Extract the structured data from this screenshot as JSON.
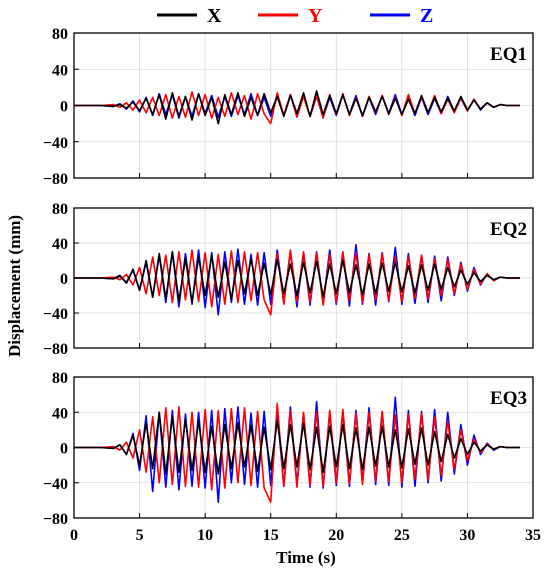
{
  "legend": [
    {
      "label": "X",
      "color": "#000000"
    },
    {
      "label": "Y",
      "color": "#ff0000"
    },
    {
      "label": "Z",
      "color": "#0000ff"
    }
  ],
  "ylabel": "Displacement (mm)",
  "xlabel": "Time (s)",
  "chart_data": [
    {
      "type": "line",
      "title": "EQ1",
      "xlim": [
        0,
        35
      ],
      "ylim": [
        -80,
        80
      ],
      "xticks": [
        0,
        5,
        10,
        15,
        20,
        25,
        30,
        35
      ],
      "yticks": [
        -80,
        -40,
        0,
        40,
        80
      ],
      "grid": true,
      "x": [
        0,
        2,
        3,
        3.5,
        4,
        4.5,
        5,
        5.5,
        6,
        6.5,
        7,
        7.5,
        8,
        8.5,
        9,
        9.5,
        10,
        10.5,
        11,
        11.5,
        12,
        12.5,
        13,
        13.5,
        14,
        14.5,
        15,
        15.5,
        16,
        16.5,
        17,
        17.5,
        18,
        18.5,
        19,
        19.5,
        20,
        20.5,
        21,
        21.5,
        22,
        22.5,
        23,
        23.5,
        24,
        24.5,
        25,
        25.5,
        26,
        26.5,
        27,
        27.5,
        28,
        28.5,
        29,
        29.5,
        30,
        30.5,
        31,
        31.5,
        32,
        32.5,
        33,
        34
      ],
      "series": [
        {
          "name": "X",
          "values": [
            0,
            0,
            -1,
            1,
            -3,
            4,
            -6,
            8,
            -10,
            12,
            -15,
            14,
            -12,
            10,
            -16,
            13,
            -11,
            9,
            -20,
            12,
            -10,
            14,
            -12,
            9,
            -11,
            13,
            -8,
            10,
            -12,
            11,
            -9,
            14,
            -12,
            16,
            -10,
            11,
            -9,
            12,
            -10,
            8,
            -11,
            9,
            -7,
            10,
            -9,
            8,
            -10,
            7,
            -9,
            11,
            -8,
            9,
            -7,
            8,
            -6,
            10,
            -5,
            6,
            -4,
            3,
            -2,
            1,
            0,
            0
          ]
        },
        {
          "name": "Y",
          "values": [
            0,
            0,
            1,
            -2,
            3,
            -5,
            6,
            -8,
            9,
            -11,
            12,
            -14,
            10,
            -13,
            15,
            -11,
            12,
            -14,
            9,
            -12,
            14,
            -10,
            11,
            -15,
            13,
            -9,
            -20,
            14,
            -11,
            12,
            -13,
            10,
            -12,
            11,
            -14,
            12,
            -10,
            13,
            -11,
            9,
            -12,
            10,
            -8,
            11,
            -10,
            9,
            -11,
            12,
            -9,
            10,
            -8,
            11,
            -9,
            7,
            -8,
            9,
            -6,
            7,
            -4,
            3,
            -2,
            1,
            0,
            0
          ]
        },
        {
          "name": "Z",
          "values": [
            0,
            0,
            -1,
            2,
            -4,
            5,
            -7,
            9,
            -11,
            13,
            -10,
            12,
            -14,
            10,
            -12,
            13,
            -9,
            11,
            -13,
            10,
            -12,
            11,
            -10,
            13,
            -11,
            9,
            -12,
            10,
            -11,
            12,
            -9,
            11,
            -12,
            10,
            -13,
            9,
            -11,
            12,
            -10,
            11,
            -12,
            9,
            -10,
            11,
            -9,
            12,
            -10,
            8,
            -11,
            9,
            -10,
            8,
            -9,
            10,
            -7,
            8,
            -6,
            7,
            -5,
            3,
            -2,
            1,
            0,
            0
          ]
        }
      ]
    },
    {
      "type": "line",
      "title": "EQ2",
      "xlim": [
        0,
        35
      ],
      "ylim": [
        -80,
        80
      ],
      "xticks": [
        0,
        5,
        10,
        15,
        20,
        25,
        30,
        35
      ],
      "yticks": [
        -80,
        -40,
        0,
        40,
        80
      ],
      "grid": true,
      "x": [
        0,
        2,
        3,
        3.5,
        4,
        4.5,
        5,
        5.5,
        6,
        6.5,
        7,
        7.5,
        8,
        8.5,
        9,
        9.5,
        10,
        10.5,
        11,
        11.5,
        12,
        12.5,
        13,
        13.5,
        14,
        14.5,
        15,
        15.5,
        16,
        16.5,
        17,
        17.5,
        18,
        18.5,
        19,
        19.5,
        20,
        20.5,
        21,
        21.5,
        22,
        22.5,
        23,
        23.5,
        24,
        24.5,
        25,
        25.5,
        26,
        26.5,
        27,
        27.5,
        28,
        28.5,
        29,
        29.5,
        30,
        30.5,
        31,
        31.5,
        32,
        32.5,
        33,
        34
      ],
      "series": [
        {
          "name": "X",
          "values": [
            0,
            0,
            -1,
            3,
            -6,
            10,
            -14,
            20,
            -22,
            28,
            -24,
            30,
            -26,
            22,
            -28,
            24,
            -20,
            26,
            -22,
            18,
            -24,
            20,
            -18,
            22,
            -20,
            17,
            -19,
            21,
            -18,
            16,
            -20,
            18,
            -17,
            19,
            -21,
            16,
            -18,
            20,
            -17,
            15,
            -19,
            16,
            -18,
            17,
            -15,
            18,
            -16,
            14,
            -17,
            15,
            -14,
            16,
            -13,
            12,
            -10,
            9,
            -7,
            6,
            -4,
            3,
            -2,
            1,
            0,
            0
          ]
        },
        {
          "name": "Y",
          "values": [
            0,
            0,
            1,
            -2,
            4,
            -8,
            12,
            -18,
            24,
            -20,
            26,
            -28,
            30,
            -25,
            32,
            -27,
            29,
            -33,
            27,
            -30,
            31,
            -28,
            30,
            -26,
            29,
            -25,
            -42,
            28,
            -30,
            32,
            -27,
            30,
            -28,
            29,
            -31,
            27,
            -28,
            30,
            -26,
            29,
            -28,
            27,
            -25,
            28,
            -26,
            24,
            -27,
            25,
            -23,
            26,
            -24,
            22,
            -20,
            21,
            -18,
            16,
            -13,
            10,
            -7,
            5,
            -3,
            1,
            0,
            0
          ]
        },
        {
          "name": "Z",
          "values": [
            0,
            0,
            -1,
            2,
            -5,
            9,
            -14,
            18,
            -22,
            26,
            -28,
            30,
            -33,
            28,
            -30,
            32,
            -34,
            29,
            -42,
            30,
            -28,
            33,
            -30,
            27,
            -31,
            29,
            -30,
            32,
            -28,
            30,
            -33,
            29,
            -31,
            30,
            -28,
            32,
            -30,
            29,
            -32,
            38,
            -30,
            28,
            -31,
            29,
            -27,
            35,
            -30,
            28,
            -29,
            26,
            -28,
            25,
            -26,
            24,
            -20,
            18,
            -15,
            12,
            -8,
            5,
            -3,
            1,
            0,
            0
          ]
        }
      ]
    },
    {
      "type": "line",
      "title": "EQ3",
      "xlim": [
        0,
        35
      ],
      "ylim": [
        -80,
        80
      ],
      "xticks": [
        0,
        5,
        10,
        15,
        20,
        25,
        30,
        35
      ],
      "yticks": [
        -80,
        -40,
        0,
        40,
        80
      ],
      "grid": true,
      "x": [
        0,
        2,
        3,
        3.5,
        4,
        4.5,
        5,
        5.5,
        6,
        6.5,
        7,
        7.5,
        8,
        8.5,
        9,
        9.5,
        10,
        10.5,
        11,
        11.5,
        12,
        12.5,
        13,
        13.5,
        14,
        14.5,
        15,
        15.5,
        16,
        16.5,
        17,
        17.5,
        18,
        18.5,
        19,
        19.5,
        20,
        20.5,
        21,
        21.5,
        22,
        22.5,
        23,
        23.5,
        24,
        24.5,
        25,
        25.5,
        26,
        26.5,
        27,
        27.5,
        28,
        28.5,
        29,
        29.5,
        30,
        30.5,
        31,
        31.5,
        32,
        32.5,
        33,
        34
      ],
      "series": [
        {
          "name": "X",
          "values": [
            0,
            0,
            -1,
            3,
            -8,
            14,
            -20,
            28,
            -24,
            40,
            -30,
            35,
            -28,
            32,
            -26,
            30,
            -28,
            24,
            -30,
            26,
            -24,
            28,
            -22,
            25,
            -27,
            23,
            -25,
            30,
            -24,
            26,
            -22,
            27,
            -25,
            23,
            -28,
            24,
            -22,
            26,
            -24,
            22,
            -25,
            23,
            -21,
            24,
            -22,
            20,
            -23,
            21,
            -19,
            22,
            -20,
            18,
            -16,
            15,
            -12,
            10,
            -8,
            6,
            -4,
            3,
            -2,
            1,
            0,
            0
          ]
        },
        {
          "name": "Y",
          "values": [
            0,
            0,
            1,
            -3,
            6,
            -12,
            20,
            -28,
            35,
            -40,
            45,
            -42,
            46,
            -44,
            40,
            -45,
            43,
            -48,
            42,
            -46,
            44,
            -40,
            45,
            -43,
            41,
            -46,
            -62,
            50,
            -44,
            42,
            -45,
            40,
            -43,
            41,
            -44,
            42,
            -40,
            43,
            -41,
            39,
            -42,
            40,
            -38,
            41,
            -39,
            37,
            -40,
            38,
            -36,
            39,
            -37,
            35,
            -32,
            30,
            -25,
            20,
            -15,
            10,
            -6,
            4,
            -2,
            1,
            0,
            0
          ]
        },
        {
          "name": "Z",
          "values": [
            0,
            0,
            -1,
            3,
            -8,
            16,
            -26,
            36,
            -50,
            40,
            -45,
            42,
            -48,
            38,
            -44,
            40,
            -46,
            42,
            -62,
            44,
            -40,
            46,
            -42,
            39,
            -45,
            41,
            -43,
            40,
            -44,
            46,
            -42,
            39,
            -45,
            52,
            -46,
            40,
            -43,
            41,
            -44,
            42,
            -40,
            45,
            -42,
            40,
            -43,
            57,
            -45,
            42,
            -44,
            41,
            -40,
            43,
            -38,
            40,
            -30,
            26,
            -20,
            14,
            -8,
            5,
            -3,
            1,
            0,
            0
          ]
        }
      ]
    }
  ]
}
